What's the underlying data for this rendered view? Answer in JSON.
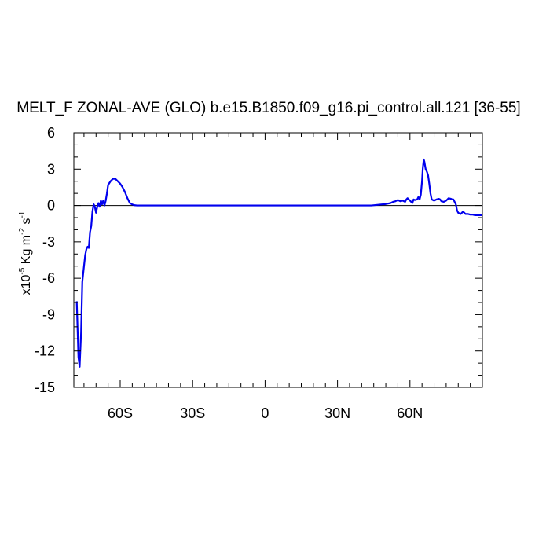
{
  "chart_data": {
    "type": "line",
    "title": "MELT_F ZONAL-AVE (GLO) b.e15.B1850.f09_g16.pi_control.all.121 [36-55]",
    "ylabel": {
      "prefix": "x10",
      "exponent": "-5",
      "unit_kg": " Kg m",
      "unit_m_exp": "-2",
      "unit_s": " s",
      "unit_s_exp": "-1"
    },
    "xlim": [
      -79.2,
      90
    ],
    "ylim": [
      -15,
      6
    ],
    "x_ticks": [
      {
        "value": -60,
        "label": "60S"
      },
      {
        "value": -30,
        "label": "30S"
      },
      {
        "value": 0,
        "label": "0"
      },
      {
        "value": 30,
        "label": "30N"
      },
      {
        "value": 60,
        "label": "60N"
      }
    ],
    "x_minor_ticks": [
      -75,
      -70,
      -65,
      -55,
      -50,
      -45,
      -40,
      -35,
      -25,
      -20,
      -15,
      -10,
      -5,
      5,
      10,
      15,
      20,
      25,
      35,
      40,
      45,
      50,
      55,
      65,
      70,
      75,
      80,
      85,
      90
    ],
    "y_ticks": [
      {
        "value": 6,
        "label": "6"
      },
      {
        "value": 3,
        "label": "3"
      },
      {
        "value": 0,
        "label": "0"
      },
      {
        "value": -3,
        "label": "-3"
      },
      {
        "value": -6,
        "label": "-6"
      },
      {
        "value": -9,
        "label": "-9"
      },
      {
        "value": -12,
        "label": "-12"
      },
      {
        "value": -15,
        "label": "-15"
      }
    ],
    "y_minor_ticks": [
      5,
      4,
      2,
      1,
      -1,
      -2,
      -4,
      -5,
      -7,
      -8,
      -10,
      -11,
      -13,
      -14
    ],
    "zero_line": true,
    "series": [
      {
        "color": "#0000ee",
        "x": [
          -78.0,
          -77.3,
          -76.8,
          -76.2,
          -75.7,
          -75.0,
          -74.5,
          -74.0,
          -73.5,
          -73.0,
          -72.5,
          -72.0,
          -71.5,
          -71.0,
          -70.5,
          -70.0,
          -69.5,
          -69.0,
          -68.5,
          -68.0,
          -67.5,
          -67.0,
          -66.5,
          -66.0,
          -65.5,
          -65.0,
          -64.0,
          -63.0,
          -62.0,
          -61.0,
          -60.0,
          -59.0,
          -58.0,
          -57.0,
          -56.0,
          -55.0,
          -54.0,
          -53.0,
          -52.0,
          -51.0,
          -50.0,
          -48.0,
          -45.0,
          -40.0,
          -30.0,
          -20.0,
          -10.0,
          0.0,
          10.0,
          20.0,
          30.0,
          40.0,
          44.0,
          46.0,
          48.0,
          50.0,
          52.0,
          53.0,
          54.0,
          55.0,
          56.0,
          57.0,
          58.0,
          58.5,
          59.0,
          60.0,
          61.0,
          61.5,
          62.0,
          63.0,
          63.5,
          64.0,
          64.5,
          65.0,
          65.3,
          65.7,
          66.0,
          66.5,
          67.0,
          67.5,
          68.0,
          68.5,
          69.0,
          70.0,
          71.0,
          72.0,
          72.5,
          73.0,
          74.0,
          75.0,
          75.5,
          76.0,
          77.0,
          77.5,
          78.0,
          78.5,
          79.0,
          79.5,
          80.0,
          81.0,
          82.0,
          83.0,
          84.0,
          85.0,
          86.0,
          87.0,
          88.0,
          89.0,
          90.0
        ],
        "y": [
          -7.9,
          -12.5,
          -13.3,
          -10.5,
          -6.3,
          -5.0,
          -4.1,
          -3.6,
          -3.4,
          -3.5,
          -2.2,
          -1.7,
          -0.5,
          0.1,
          -0.1,
          -0.6,
          -0.1,
          0.2,
          -0.1,
          0.4,
          0.1,
          0.4,
          0.0,
          0.4,
          1.0,
          1.7,
          2.0,
          2.2,
          2.2,
          2.0,
          1.8,
          1.5,
          1.1,
          0.6,
          0.2,
          0.08,
          0.02,
          0.0,
          0.0,
          0.0,
          0.0,
          0.0,
          0.0,
          0.0,
          0.0,
          0.0,
          0.0,
          0.0,
          0.0,
          0.0,
          0.0,
          0.0,
          0.0,
          0.04,
          0.08,
          0.12,
          0.2,
          0.3,
          0.35,
          0.45,
          0.35,
          0.4,
          0.3,
          0.5,
          0.6,
          0.4,
          0.2,
          0.5,
          0.45,
          0.5,
          0.7,
          0.5,
          0.9,
          2.0,
          3.0,
          3.8,
          3.6,
          3.0,
          2.8,
          2.5,
          1.8,
          1.0,
          0.5,
          0.4,
          0.5,
          0.55,
          0.5,
          0.35,
          0.3,
          0.4,
          0.5,
          0.6,
          0.55,
          0.5,
          0.5,
          0.3,
          0.1,
          -0.4,
          -0.6,
          -0.7,
          -0.5,
          -0.7,
          -0.7,
          -0.75,
          -0.75,
          -0.8,
          -0.8,
          -0.8,
          -0.8
        ]
      }
    ]
  }
}
